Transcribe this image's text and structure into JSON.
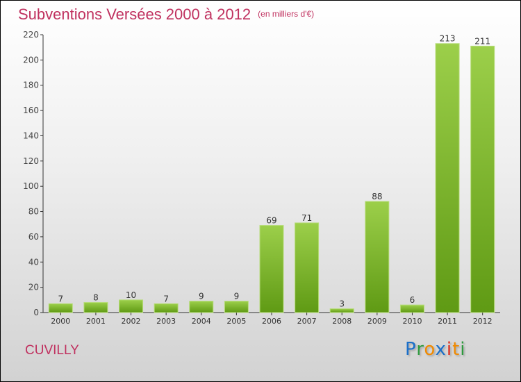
{
  "header": {
    "title": "Subventions Versées 2000 à 2012",
    "unit": "(en milliers d'€)"
  },
  "commune": "CUVILLY",
  "logo": {
    "text": "Proxiti",
    "letters": [
      {
        "c": "P",
        "color": "#1a6fc9"
      },
      {
        "c": "r",
        "color": "#2e9a3e"
      },
      {
        "c": "o",
        "color": "#f08a00"
      },
      {
        "c": "x",
        "color": "#1a6fc9"
      },
      {
        "c": "i",
        "color": "#e03020"
      },
      {
        "c": "t",
        "color": "#f08a00"
      },
      {
        "c": "i",
        "color": "#2e9a3e"
      }
    ]
  },
  "chart_data": {
    "type": "bar",
    "title": "Subventions Versées 2000 à 2012",
    "ylabel": "(en milliers d'€)",
    "categories": [
      "2000",
      "2001",
      "2002",
      "2003",
      "2004",
      "2005",
      "2006",
      "2007",
      "2008",
      "2009",
      "2010",
      "2011",
      "2012"
    ],
    "values": [
      7,
      8,
      10,
      7,
      9,
      9,
      69,
      71,
      3,
      88,
      6,
      213,
      211
    ],
    "ylim": [
      0,
      220
    ],
    "yticks": [
      0,
      20,
      40,
      60,
      80,
      100,
      120,
      140,
      160,
      180,
      200,
      220
    ],
    "grid": false,
    "bar_color": "#7dbb2e"
  }
}
